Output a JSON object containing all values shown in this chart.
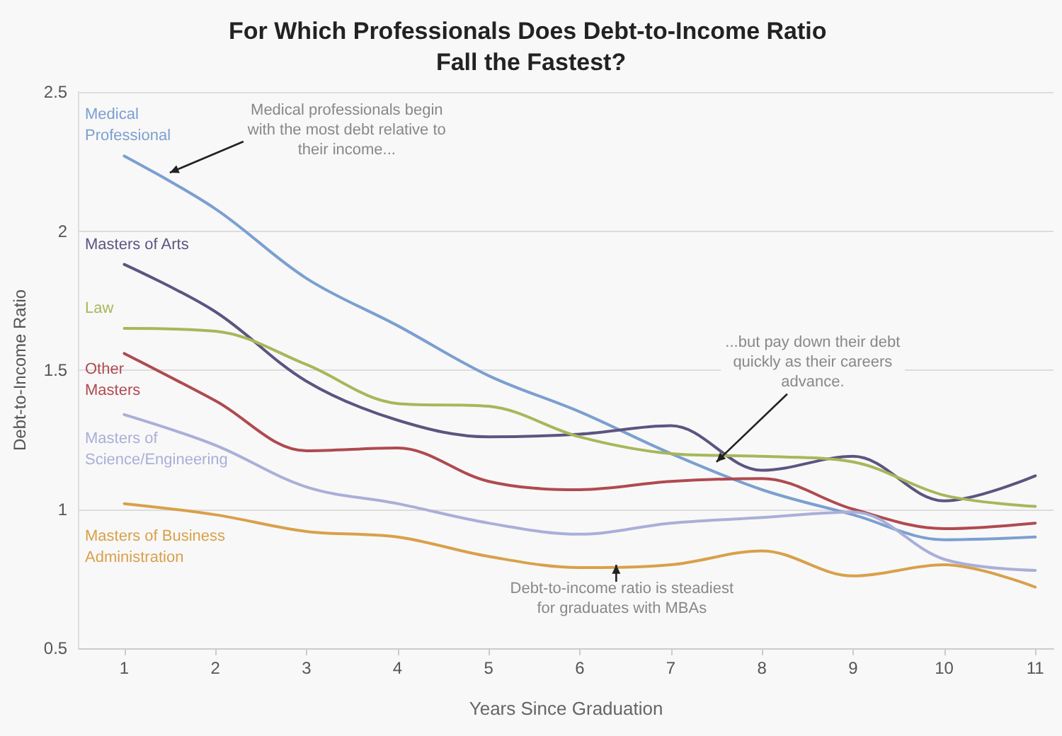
{
  "chart_data": {
    "type": "line",
    "title": "For Which Professionals Does Debt-to-Income Ratio Fall the Fastest?",
    "xlabel": "Years Since Graduation",
    "ylabel": "Debt-to-Income Ratio",
    "x": [
      1,
      2,
      3,
      4,
      5,
      6,
      7,
      8,
      9,
      10,
      11
    ],
    "xlim": [
      0.5,
      11.2
    ],
    "xticks": [
      1,
      2,
      3,
      4,
      5,
      6,
      7,
      8,
      9,
      10,
      11
    ],
    "ylim": [
      0.5,
      2.5
    ],
    "yticks": [
      {
        "value": 0.5,
        "label": "0.5"
      },
      {
        "value": 1,
        "label": "1"
      },
      {
        "value": 1.5,
        "label": "1.5"
      },
      {
        "value": 2,
        "label": "2"
      },
      {
        "value": 2.5,
        "label": "2.5"
      }
    ],
    "grid": "y",
    "marker": "none",
    "line_style": "solid",
    "series": [
      {
        "name": "Medical Professional",
        "color": "#7b9fd0",
        "values": [
          2.27,
          2.08,
          1.83,
          1.66,
          1.48,
          1.35,
          1.2,
          1.07,
          0.98,
          0.89,
          0.9
        ]
      },
      {
        "name": "Masters of Arts",
        "color": "#5c5480",
        "values": [
          1.88,
          1.71,
          1.46,
          1.32,
          1.26,
          1.27,
          1.3,
          1.14,
          1.19,
          1.03,
          1.12
        ]
      },
      {
        "name": "Law",
        "color": "#a5b85a",
        "values": [
          1.65,
          1.64,
          1.52,
          1.38,
          1.37,
          1.26,
          1.2,
          1.19,
          1.17,
          1.05,
          1.01
        ]
      },
      {
        "name": "Other Masters",
        "color": "#b04a50",
        "values": [
          1.56,
          1.39,
          1.21,
          1.22,
          1.1,
          1.07,
          1.1,
          1.11,
          1.0,
          0.93,
          0.95
        ]
      },
      {
        "name": "Masters of Science/Engineering",
        "color": "#a9afd8",
        "values": [
          1.34,
          1.23,
          1.08,
          1.02,
          0.95,
          0.91,
          0.95,
          0.97,
          0.99,
          0.82,
          0.78
        ]
      },
      {
        "name": "Masters of Business Administration",
        "color": "#d9a04a",
        "values": [
          1.02,
          0.98,
          0.92,
          0.9,
          0.83,
          0.79,
          0.8,
          0.85,
          0.76,
          0.8,
          0.72
        ]
      }
    ],
    "annotations": [
      {
        "text": "Medical professionals begin with the most debt relative to their income...",
        "x": 1.5,
        "y": 2.21
      },
      {
        "text": "...but pay down their debt quickly as their careers advance.",
        "x": 7.5,
        "y": 1.17
      },
      {
        "text": "Debt-to-income ratio is steadiest for graduates with MBAs",
        "x": 6.4,
        "y": 0.8
      }
    ]
  }
}
